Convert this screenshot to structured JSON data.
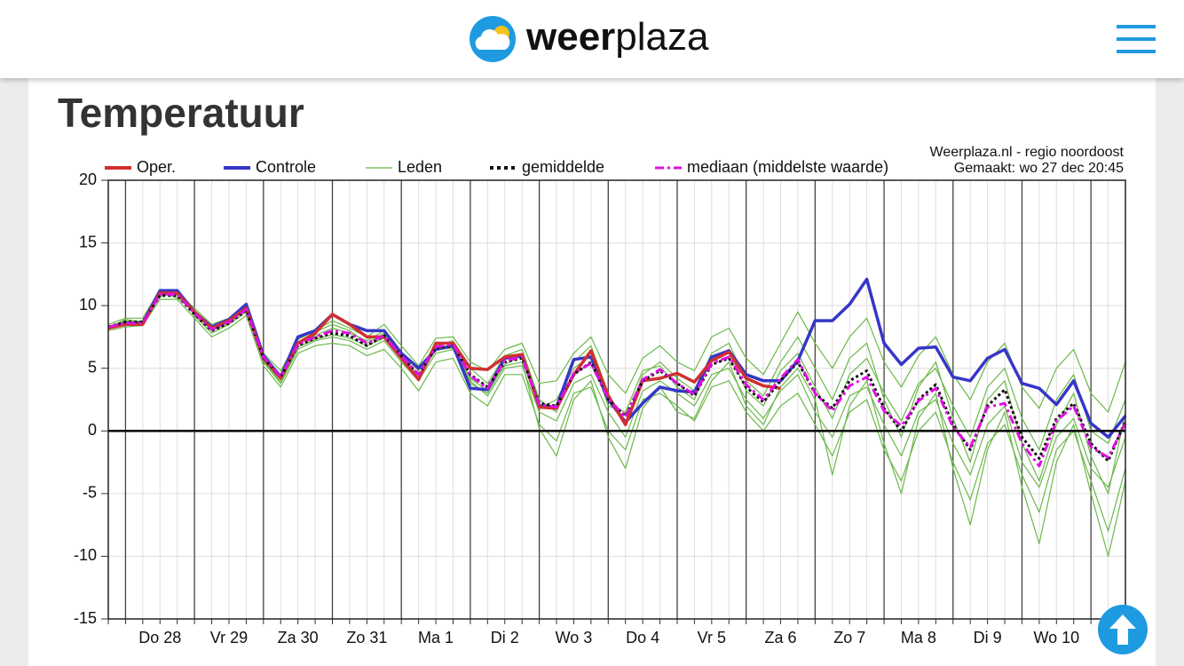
{
  "header": {
    "logo_bold": "weer",
    "logo_light": "plaza"
  },
  "title": "Temperatuur",
  "chart_data": {
    "type": "line",
    "source": "Weerplaza.nl - regio noordoost",
    "made": "Gemaakt: wo 27 dec 20:45",
    "categories": [
      null,
      null,
      null,
      "Do 28",
      null,
      null,
      null,
      "Vr 29",
      null,
      null,
      null,
      "Za 30",
      null,
      null,
      null,
      "Zo 31",
      null,
      null,
      null,
      "Ma 1",
      null,
      null,
      null,
      "Di 2",
      null,
      null,
      null,
      "Wo 3",
      null,
      null,
      null,
      "Do 4",
      null,
      null,
      null,
      "Vr 5",
      null,
      null,
      null,
      "Za 6",
      null,
      null,
      null,
      "Zo 7",
      null,
      null,
      null,
      "Ma 8",
      null,
      null,
      null,
      "Di 9",
      null,
      null,
      null,
      "Wo 10",
      null,
      null,
      null,
      null
    ],
    "ylim": [
      -15,
      20
    ],
    "yticks": [
      20,
      15,
      10,
      5,
      0,
      -5,
      -10,
      -15
    ],
    "grid": true,
    "members": {
      "name": "Leden",
      "color": "#6cb84a",
      "runs": [
        [
          8.5,
          9,
          9,
          11.3,
          11,
          9.8,
          8.5,
          9,
          10,
          6.2,
          4.8,
          7.3,
          8,
          8.8,
          8.2,
          7.5,
          8.5,
          6.8,
          5.2,
          7.4,
          7.5,
          5.5,
          4.8,
          6.5,
          7,
          3.8,
          4,
          6.2,
          7.5,
          4.5,
          3,
          5.8,
          6.8,
          5.5,
          4.8,
          7.5,
          8.2,
          5.8,
          4.5,
          7,
          9.5,
          7,
          5,
          7.5,
          9,
          5.5,
          3.5,
          6,
          7.5,
          4.5,
          2.5,
          5.5,
          7,
          3.5,
          1.8,
          5,
          6.5,
          3,
          1.5,
          5.5
        ],
        [
          8,
          8.3,
          8.4,
          10.5,
          10.5,
          9,
          7.5,
          8.2,
          9.2,
          5.2,
          3.5,
          6.2,
          6.8,
          7,
          6.8,
          6,
          6.5,
          5,
          3.2,
          5.5,
          5.8,
          3,
          2,
          4.5,
          4.5,
          0.5,
          -0.8,
          3,
          3.5,
          0,
          -1.5,
          2.5,
          3,
          2,
          0.8,
          3.5,
          4,
          1.5,
          0,
          2,
          3,
          0.5,
          -2,
          1.5,
          2.5,
          -1.5,
          -4,
          0,
          1.5,
          -2.5,
          -5.5,
          -1,
          0.5,
          -3.5,
          -6.5,
          -1.5,
          0,
          -4,
          -8,
          -3
        ],
        [
          8.3,
          8.8,
          8.6,
          11,
          10.9,
          9.5,
          8.2,
          8.7,
          9.8,
          6,
          4.5,
          7,
          7.6,
          8.2,
          7.8,
          7.2,
          8,
          6.3,
          4.8,
          6.8,
          7.2,
          5,
          3.8,
          6,
          6.5,
          2.5,
          1.5,
          5.5,
          6.8,
          3,
          0.5,
          4.5,
          5.5,
          4.2,
          3.2,
          6.2,
          7,
          4,
          2.8,
          5.5,
          7.5,
          5,
          2.5,
          5.8,
          7,
          2.5,
          -0.5,
          3.5,
          5.5,
          1,
          -2.5,
          2.5,
          4,
          -1,
          -4,
          0.5,
          3,
          -2,
          -5,
          1.5
        ],
        [
          8.1,
          8.6,
          8.8,
          10.7,
          11.1,
          9.2,
          7.8,
          8.5,
          9.5,
          5.5,
          3.8,
          6.5,
          7.2,
          7.5,
          7.2,
          6.5,
          7.2,
          5.5,
          4,
          6.2,
          6.5,
          4,
          2.8,
          5,
          5.2,
          1.5,
          0.8,
          3.8,
          4.5,
          1.5,
          -0.5,
          3.2,
          4,
          3,
          2,
          4.5,
          5,
          2.5,
          1,
          3.2,
          4.5,
          1.5,
          -0.5,
          2.8,
          3.5,
          0.5,
          -2,
          1.5,
          2.5,
          -1,
          -3.5,
          0.5,
          2,
          -2.5,
          -4.5,
          -0.5,
          1,
          -3,
          -4.5,
          -0.5
        ],
        [
          8.4,
          8.5,
          8.5,
          11.1,
          10.6,
          9.6,
          8.1,
          8.8,
          9.9,
          5.9,
          4.1,
          7.1,
          7.9,
          8.5,
          8,
          7,
          7.8,
          6.1,
          4.4,
          6.9,
          7,
          3.8,
          3,
          5.3,
          6,
          1.8,
          2.5,
          5,
          6,
          2,
          1.5,
          4.8,
          5.2,
          3.5,
          2.5,
          5.8,
          6.5,
          3.2,
          2,
          4.8,
          6.2,
          3.5,
          1,
          4.5,
          5.8,
          3,
          0.8,
          3.8,
          5,
          2,
          -0.5,
          3.5,
          5,
          1,
          -1.5,
          2.5,
          4.5,
          0,
          -1,
          2.5
        ],
        [
          8.2,
          8.9,
          8.7,
          10.9,
          10.8,
          9.4,
          8,
          8.6,
          9.7,
          5.6,
          3.9,
          6.7,
          7.3,
          7.7,
          7.4,
          6.8,
          7.4,
          5.8,
          4.2,
          6.5,
          6.6,
          4.2,
          3.2,
          5.2,
          5.5,
          0.2,
          -2,
          2.5,
          4,
          -0.5,
          -3,
          1.8,
          3.5,
          1.5,
          1,
          4,
          5.5,
          2,
          0.5,
          3.5,
          5,
          2.5,
          -3.5,
          2,
          4,
          -1,
          -5,
          1,
          3,
          -3,
          -7.5,
          -1.5,
          1.5,
          -4.5,
          -9,
          -2.5,
          0.5,
          -5,
          -10,
          -4
        ]
      ]
    },
    "series": [
      {
        "name": "Oper.",
        "color": "#d03030",
        "dash": "solid",
        "values": [
          8.2,
          8.5,
          8.5,
          11,
          11,
          9.5,
          8.2,
          8.8,
          9.8,
          5.8,
          4.2,
          7,
          7.8,
          9.3,
          8.5,
          7.5,
          7.5,
          5.8,
          4.1,
          7,
          7,
          5,
          4.9,
          5.9,
          6.1,
          1.9,
          1.8,
          4.5,
          6.4,
          2.8,
          0.5,
          4,
          4.2,
          4.6,
          3.9,
          5.6,
          6.3,
          4.2,
          3.6,
          3.4,
          null,
          null,
          null,
          null,
          null,
          null,
          null,
          null,
          null,
          null,
          null,
          null,
          null,
          null,
          null,
          null,
          null,
          null,
          null,
          null
        ]
      },
      {
        "name": "Controle",
        "color": "#3636c8",
        "dash": "solid",
        "values": [
          8.2,
          8.6,
          8.6,
          11.2,
          11.2,
          9.5,
          8.3,
          8.9,
          10.1,
          6,
          4.3,
          7.5,
          8,
          9.3,
          8.5,
          8,
          8,
          6.2,
          5,
          6.5,
          6.8,
          3.4,
          3.3,
          5.8,
          6,
          2,
          1.9,
          5.7,
          5.9,
          2.5,
          0.7,
          2.2,
          3.5,
          3.2,
          3.1,
          5.9,
          6.4,
          4.5,
          4,
          4,
          5.6,
          8.8,
          8.8,
          10.1,
          12.1,
          7,
          5.3,
          6.6,
          6.7,
          4.3,
          4,
          5.8,
          6.5,
          3.8,
          3.4,
          2.1,
          4,
          0.6,
          -0.5,
          1.2
        ]
      },
      {
        "name": "gemiddelde",
        "color": "#111111",
        "dash": "dotted",
        "values": [
          8.3,
          8.7,
          8.7,
          10.8,
          10.8,
          9.3,
          8,
          8.6,
          9.6,
          5.8,
          4.3,
          6.8,
          7.4,
          7.8,
          7.6,
          6.8,
          7.6,
          6,
          4.5,
          6.6,
          6.8,
          4.5,
          3.5,
          5.5,
          5.8,
          2.2,
          2,
          4.5,
          5.5,
          2.5,
          1.2,
          4,
          4.8,
          3.8,
          2.8,
          5.3,
          5.8,
          3.5,
          2.3,
          4,
          5.5,
          3,
          1.8,
          4,
          4.8,
          1.8,
          0,
          2.5,
          3.7,
          0.5,
          -1.5,
          2,
          3.3,
          -0.5,
          -2.2,
          1,
          2.2,
          -1,
          -2.4,
          0.8
        ]
      },
      {
        "name": "mediaan (middelste waarde)",
        "color": "#e010e0",
        "dash": "dashdot",
        "values": [
          8.3,
          8.6,
          8.6,
          10.9,
          10.9,
          9.4,
          8.1,
          8.7,
          9.7,
          5.9,
          4.3,
          6.9,
          7.5,
          8,
          7.8,
          7,
          7.6,
          6,
          4.5,
          6.7,
          6.9,
          4.4,
          3.4,
          5.6,
          5.9,
          2.1,
          1.9,
          4.6,
          5.4,
          2.6,
          1.1,
          4.1,
          4.9,
          3.8,
          2.9,
          5.4,
          5.9,
          3.7,
          2.5,
          4.2,
          5.7,
          3,
          1.6,
          3.6,
          4.3,
          1.6,
          0.4,
          2.4,
          3.4,
          0.3,
          -1.3,
          1.9,
          2.2,
          -1,
          -2.8,
          0.8,
          2,
          -1.3,
          -2.1,
          0.6
        ]
      }
    ]
  }
}
